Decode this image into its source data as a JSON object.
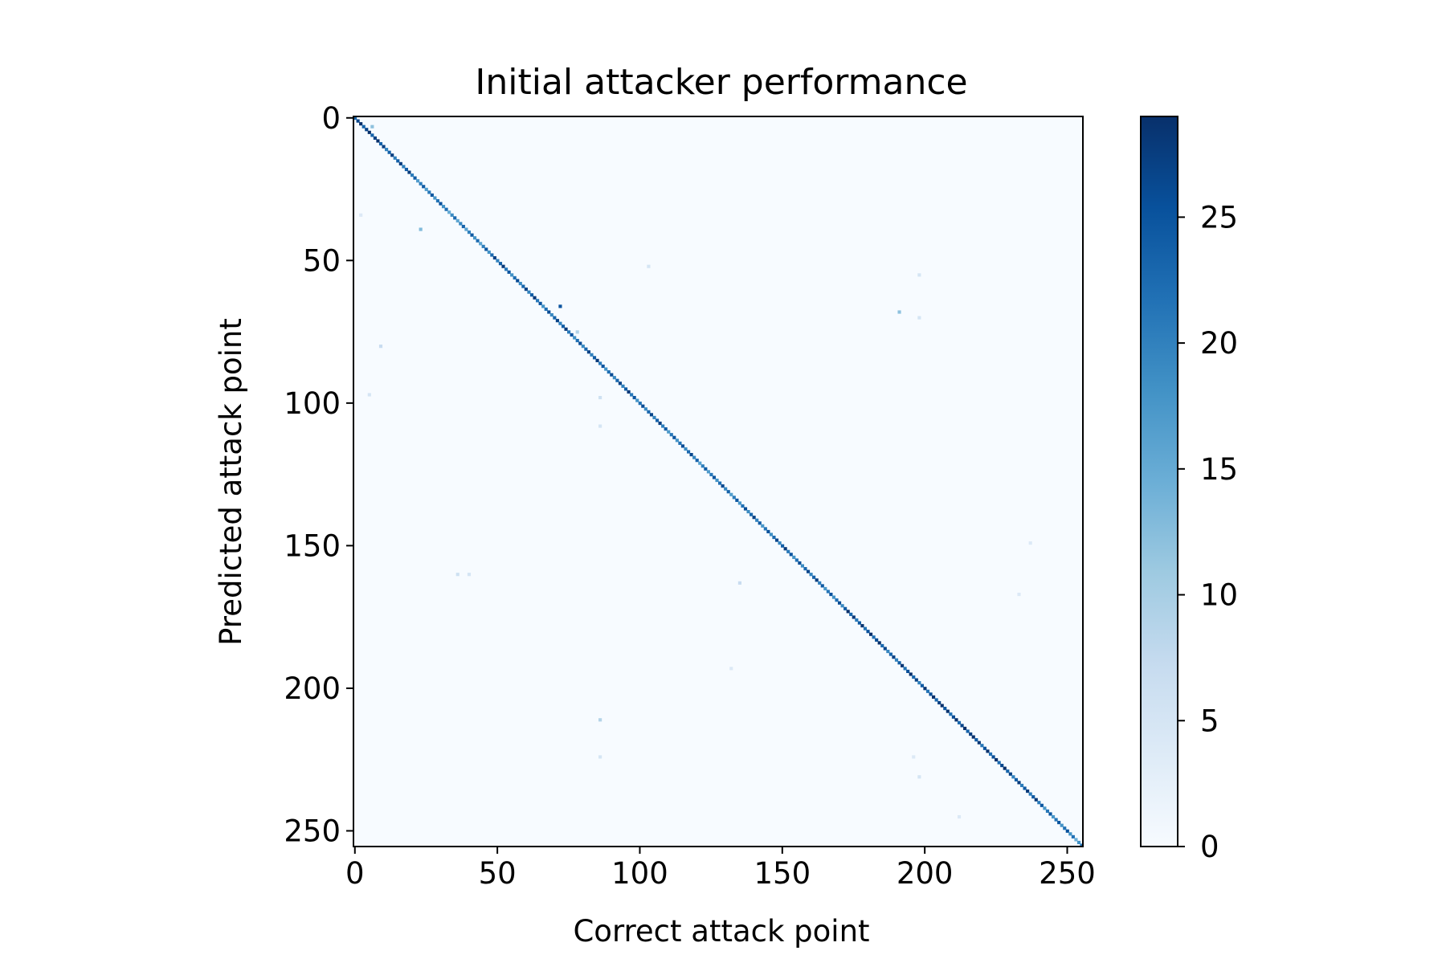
{
  "chart_data": {
    "type": "heatmap",
    "title": "Initial attacker performance",
    "xlabel": "Correct attack point",
    "ylabel": "Predicted attack point",
    "size": 256,
    "xlim": [
      0,
      255
    ],
    "ylim": [
      255,
      0
    ],
    "x_ticks": [
      0,
      50,
      100,
      150,
      200,
      250
    ],
    "y_ticks": [
      0,
      50,
      100,
      150,
      200,
      250
    ],
    "colormap": "Blues",
    "color_min": 0,
    "color_max": 29,
    "colorbar_ticks": [
      0,
      5,
      10,
      15,
      20,
      25
    ],
    "diagonal": "strong diagonal of correct predictions, values approximately 8-29",
    "diagonal_cells_sampled": [
      {
        "x": 0,
        "y": 0,
        "value": 29
      },
      {
        "x": 25,
        "y": 25,
        "value": 22
      },
      {
        "x": 40,
        "y": 40,
        "value": 20
      },
      {
        "x": 49,
        "y": 49,
        "value": 24
      },
      {
        "x": 72,
        "y": 66,
        "value": 25
      },
      {
        "x": 100,
        "y": 100,
        "value": 24
      },
      {
        "x": 125,
        "y": 125,
        "value": 22
      },
      {
        "x": 153,
        "y": 153,
        "value": 24
      },
      {
        "x": 171,
        "y": 171,
        "value": 23
      },
      {
        "x": 175,
        "y": 175,
        "value": 27
      },
      {
        "x": 190,
        "y": 190,
        "value": 25
      },
      {
        "x": 210,
        "y": 210,
        "value": 28
      },
      {
        "x": 232,
        "y": 232,
        "value": 26
      },
      {
        "x": 255,
        "y": 255,
        "value": 20
      }
    ],
    "off_diagonal_cells": [
      {
        "x": 6,
        "y": 3,
        "value": 12
      },
      {
        "x": 23,
        "y": 39,
        "value": 13
      },
      {
        "x": 72,
        "y": 66,
        "value": 25
      },
      {
        "x": 191,
        "y": 68,
        "value": 12
      },
      {
        "x": 198,
        "y": 70,
        "value": 5
      },
      {
        "x": 9,
        "y": 80,
        "value": 7
      },
      {
        "x": 86,
        "y": 98,
        "value": 6
      },
      {
        "x": 86,
        "y": 108,
        "value": 5
      },
      {
        "x": 36,
        "y": 160,
        "value": 6
      },
      {
        "x": 40,
        "y": 160,
        "value": 5
      },
      {
        "x": 135,
        "y": 163,
        "value": 7
      },
      {
        "x": 86,
        "y": 211,
        "value": 9
      },
      {
        "x": 86,
        "y": 224,
        "value": 5
      },
      {
        "x": 198,
        "y": 55,
        "value": 5
      },
      {
        "x": 5,
        "y": 97,
        "value": 5
      },
      {
        "x": 2,
        "y": 34,
        "value": 4
      },
      {
        "x": 132,
        "y": 193,
        "value": 4
      },
      {
        "x": 198,
        "y": 231,
        "value": 5
      },
      {
        "x": 233,
        "y": 167,
        "value": 4
      },
      {
        "x": 237,
        "y": 149,
        "value": 4
      },
      {
        "x": 103,
        "y": 52,
        "value": 5
      },
      {
        "x": 78,
        "y": 75,
        "value": 9
      },
      {
        "x": 196,
        "y": 224,
        "value": 4
      },
      {
        "x": 212,
        "y": 245,
        "value": 4
      }
    ]
  }
}
